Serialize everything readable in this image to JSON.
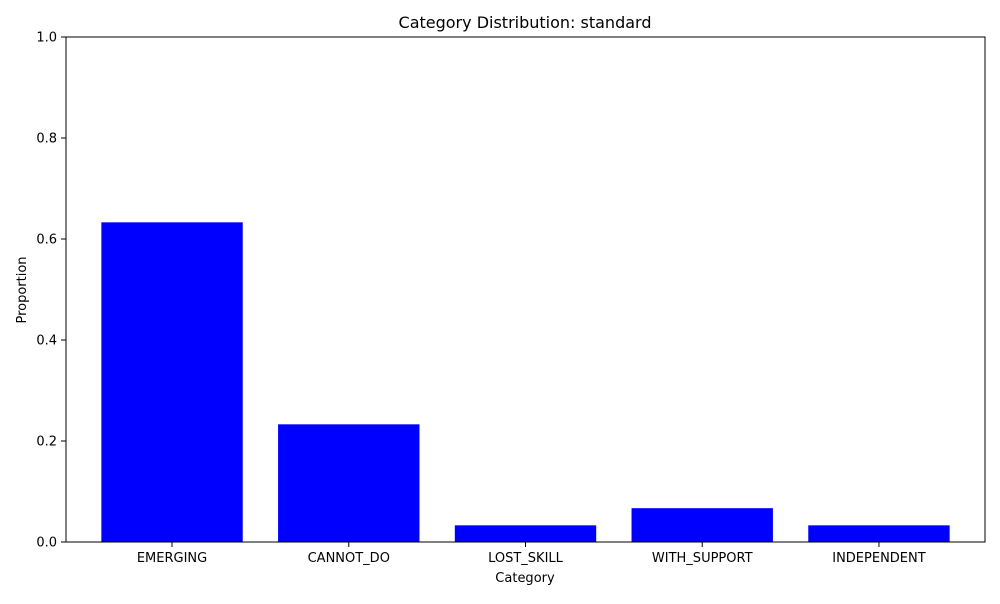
{
  "chart_data": {
    "type": "bar",
    "title": "Category Distribution: standard",
    "xlabel": "Category",
    "ylabel": "Proportion",
    "categories": [
      "EMERGING",
      "CANNOT_DO",
      "LOST_SKILL",
      "WITH_SUPPORT",
      "INDEPENDENT"
    ],
    "values": [
      0.633,
      0.233,
      0.033,
      0.067,
      0.033
    ],
    "ylim": [
      0,
      1.0
    ],
    "yticks": [
      "0.0",
      "0.2",
      "0.4",
      "0.6",
      "0.8",
      "1.0"
    ],
    "bar_color": "#0000ff",
    "grid": false,
    "legend": "none"
  }
}
